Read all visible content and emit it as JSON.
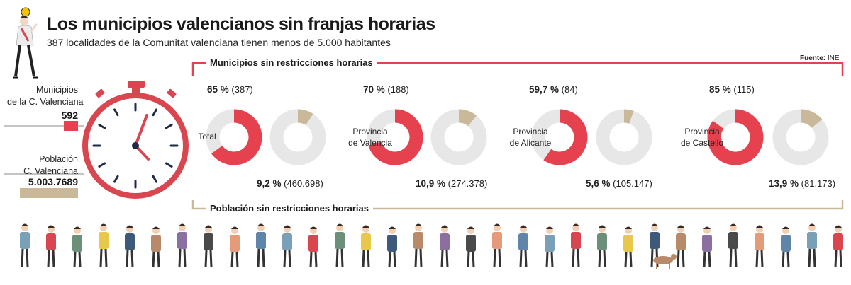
{
  "header": {
    "title": "Los municipios valencianos sin franjas horarias",
    "subtitle": "387 localidades de la Comunitat valenciana tienen menos de 5.000 habitantes",
    "source_label": "Fuente:",
    "source_value": "INE"
  },
  "legend_side": {
    "municipios_label_line1": "Municipios",
    "municipios_label_line2": "de la C. Valenciana",
    "municipios_value": "592",
    "poblacion_label_line1": "Población",
    "poblacion_label_line2": "C. Valenciana",
    "poblacion_value": "5.003.7689"
  },
  "sections": {
    "municipios": "Municipios sin restricciones horarias",
    "poblacion": "Población sin restricciones horarias"
  },
  "colors": {
    "municipios": "#e6414f",
    "poblacion": "#c9b99a",
    "track": "#e7e7e7",
    "dial_outline": "#d9464f"
  },
  "chart_data": {
    "type": "pie",
    "variant": "donut",
    "groups": [
      {
        "label_line1": "Total",
        "label_line2": "",
        "municipios_pct_label": "65 %",
        "municipios_count_label": "(387)",
        "municipios_pct": 65,
        "poblacion_pct_label": "9,2 %",
        "poblacion_count_label": "(460.698)",
        "poblacion_pct": 9.2
      },
      {
        "label_line1": "Provincia",
        "label_line2": "de Valencia",
        "municipios_pct_label": "70 %",
        "municipios_count_label": "(188)",
        "municipios_pct": 70,
        "poblacion_pct_label": "10,9 %",
        "poblacion_count_label": "(274.378)",
        "poblacion_pct": 10.9
      },
      {
        "label_line1": "Provincia",
        "label_line2": "de Alicante",
        "municipios_pct_label": "59,7 %",
        "municipios_count_label": "(84)",
        "municipios_pct": 59.7,
        "poblacion_pct_label": "5,6 %",
        "poblacion_count_label": "(105.147)",
        "poblacion_pct": 5.6
      },
      {
        "label_line1": "Provincia",
        "label_line2": "de Castelló",
        "municipios_pct_label": "85 %",
        "municipios_count_label": "(115)",
        "municipios_pct": 85,
        "poblacion_pct_label": "13,9 %",
        "poblacion_count_label": "(81.173)",
        "poblacion_pct": 13.9
      }
    ]
  },
  "illustrations": {
    "stopwatch": "stopwatch-icon",
    "woman_clock": "woman-with-clock-illustration",
    "crowd": "crowd-of-people-illustration"
  }
}
